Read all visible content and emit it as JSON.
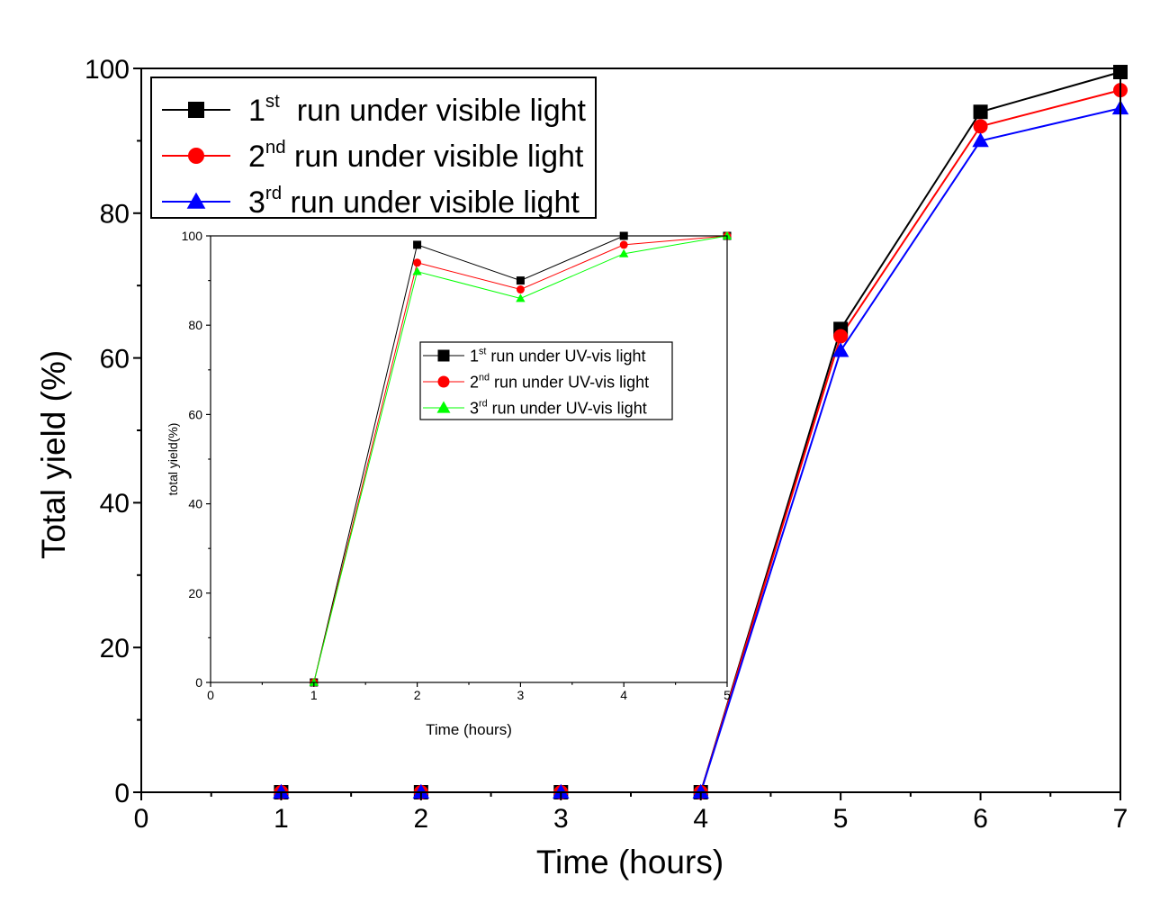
{
  "chart_data": [
    {
      "type": "line",
      "xlabel": "Time (hours)",
      "ylabel": "Total yield (%)",
      "xlim": [
        0,
        7
      ],
      "ylim": [
        0,
        100
      ],
      "xticks": [
        "0",
        "1",
        "2",
        "3",
        "4",
        "5",
        "6",
        "7"
      ],
      "yticks": [
        "0",
        "20",
        "40",
        "60",
        "80",
        "100"
      ],
      "grid": false,
      "legend_position": "top-left",
      "legend": [
        {
          "base": "1",
          "sup": "st",
          "rest": "  run under visible light"
        },
        {
          "base": "2",
          "sup": "nd",
          "rest": " run under visible light"
        },
        {
          "base": "3",
          "sup": "rd",
          "rest": " run under visible light"
        }
      ],
      "series": [
        {
          "color": "#000000",
          "marker": "square",
          "x": [
            1,
            2,
            3,
            4,
            5,
            6,
            7
          ],
          "y": [
            0,
            0,
            0,
            0,
            64,
            94,
            99.5
          ]
        },
        {
          "color": "#ff0000",
          "marker": "circle",
          "x": [
            1,
            2,
            3,
            4,
            5,
            6,
            7
          ],
          "y": [
            0,
            0,
            0,
            0,
            63,
            92,
            97
          ]
        },
        {
          "color": "#0000ff",
          "marker": "triangle",
          "x": [
            1,
            2,
            3,
            4,
            5,
            6,
            7
          ],
          "y": [
            0,
            0,
            0,
            0,
            61,
            90,
            94.5
          ]
        }
      ]
    },
    {
      "type": "line",
      "role": "inset",
      "xlabel": "Time (hours)",
      "ylabel": "total yield(%)",
      "xlim": [
        0,
        5
      ],
      "ylim": [
        0,
        100
      ],
      "xticks": [
        "0",
        "1",
        "2",
        "3",
        "4",
        "5"
      ],
      "yticks": [
        "0",
        "20",
        "40",
        "60",
        "80",
        "100"
      ],
      "grid": false,
      "legend_position": "center-right",
      "legend": [
        {
          "base": "1",
          "sup": "st",
          "rest": " run under UV-vis light"
        },
        {
          "base": "2",
          "sup": "nd",
          "rest": " run under UV-vis light"
        },
        {
          "base": "3",
          "sup": "rd",
          "rest": " run under UV-vis light"
        }
      ],
      "series": [
        {
          "color": "#000000",
          "marker": "square",
          "x": [
            1,
            2,
            3,
            4,
            5
          ],
          "y": [
            0,
            98,
            90,
            100,
            100
          ]
        },
        {
          "color": "#ff0000",
          "marker": "circle",
          "x": [
            1,
            2,
            3,
            4,
            5
          ],
          "y": [
            0,
            94,
            88,
            98,
            100
          ]
        },
        {
          "color": "#00ff00",
          "marker": "triangle",
          "x": [
            1,
            2,
            3,
            4,
            5
          ],
          "y": [
            0,
            92,
            86,
            96,
            100
          ]
        }
      ]
    }
  ]
}
